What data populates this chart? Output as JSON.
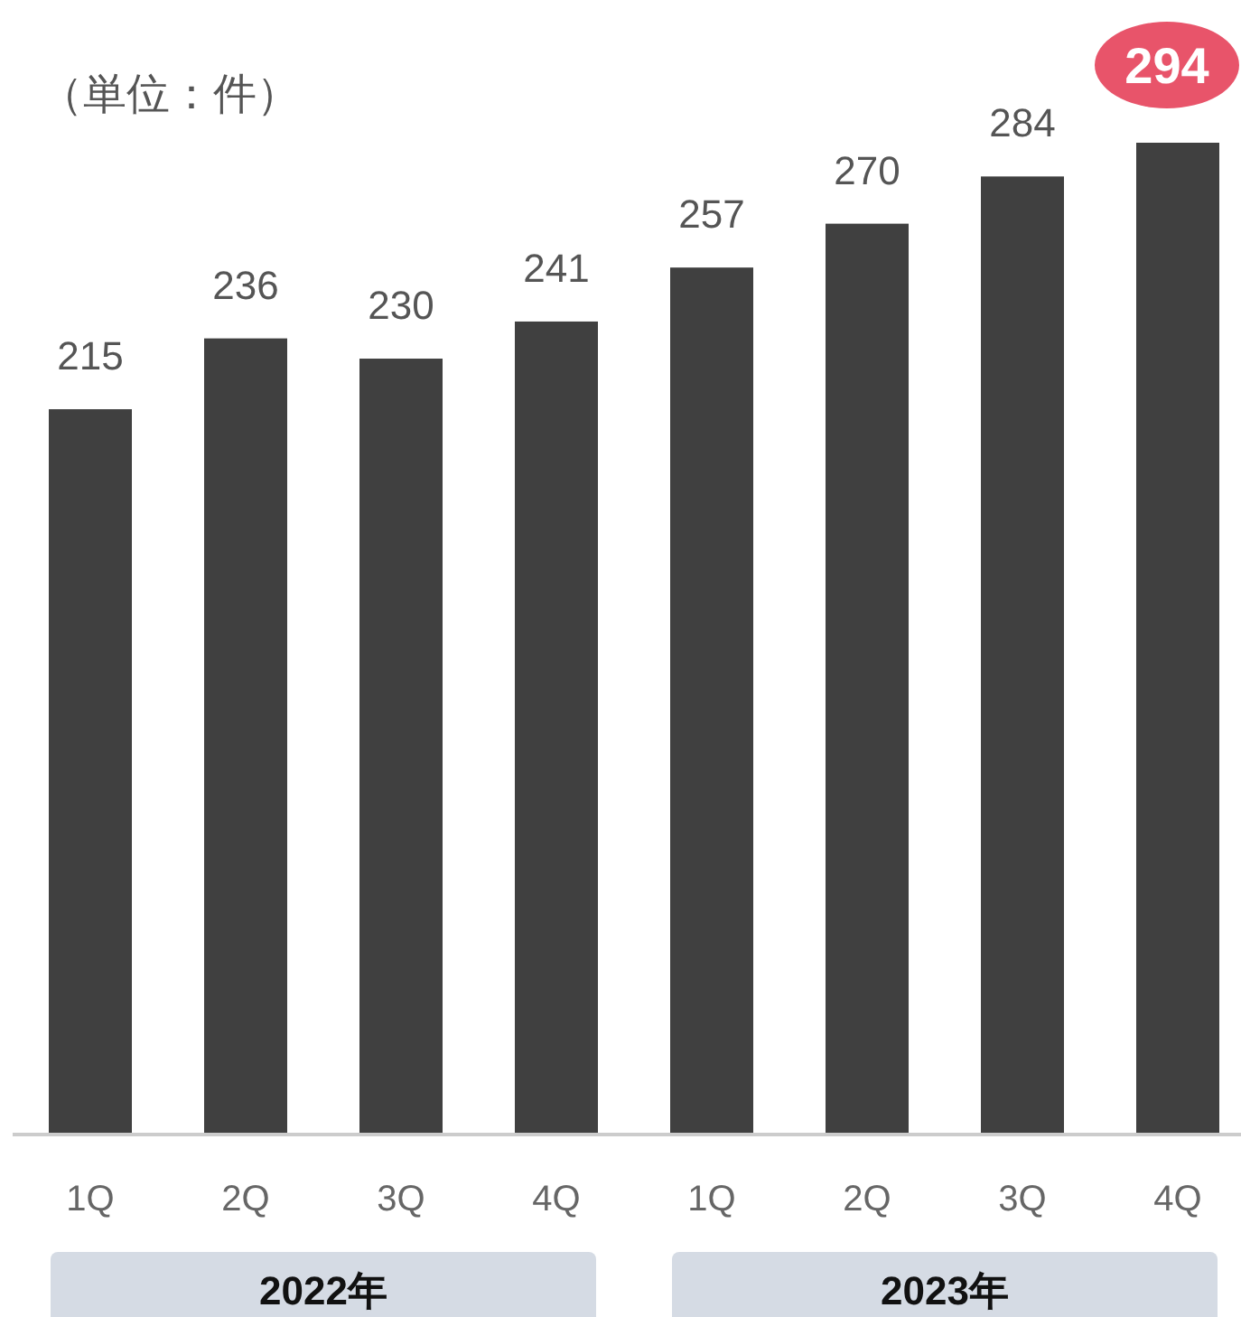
{
  "chart_data": {
    "type": "bar",
    "categories": [
      "1Q",
      "2Q",
      "3Q",
      "4Q",
      "1Q",
      "2Q",
      "3Q",
      "4Q"
    ],
    "values": [
      215,
      236,
      230,
      241,
      257,
      270,
      284,
      294
    ],
    "color": "#404040",
    "data_labels": true,
    "annotations": [
      "（単位：件）",
      "2022年",
      "2023年"
    ]
  }
}
